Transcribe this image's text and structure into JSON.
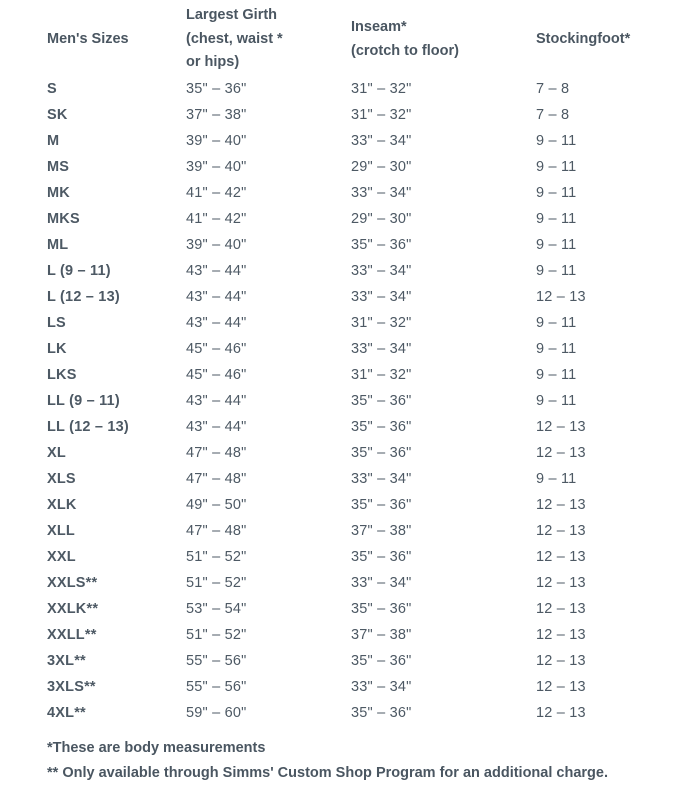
{
  "headers": {
    "size": "Men's Sizes",
    "girth": [
      "Largest Girth",
      "(chest, waist *",
      "or hips)"
    ],
    "inseam": [
      "Inseam*",
      "(crotch to floor)"
    ],
    "stockingfoot": "Stockingfoot*"
  },
  "rows": [
    [
      "S",
      "35\" – 36\"",
      "31\" – 32\"",
      "7 – 8"
    ],
    [
      "SK",
      "37\" – 38\"",
      "31\" – 32\"",
      "7 – 8"
    ],
    [
      "M",
      "39\" – 40\"",
      "33\" – 34\"",
      "9 – 11"
    ],
    [
      "MS",
      "39\" – 40\"",
      "29\" – 30\"",
      "9 – 11"
    ],
    [
      "MK",
      "41\" – 42\"",
      "33\" – 34\"",
      "9 – 11"
    ],
    [
      "MKS",
      "41\" – 42\"",
      "29\" – 30\"",
      "9 – 11"
    ],
    [
      "ML",
      "39\" – 40\"",
      "35\" – 36\"",
      "9 – 11"
    ],
    [
      "L (9 – 11)",
      "43\" – 44\"",
      "33\" – 34\"",
      "9 – 11"
    ],
    [
      "L (12 – 13)",
      "43\" – 44\"",
      "33\" – 34\"",
      "12 – 13"
    ],
    [
      "LS",
      "43\" – 44\"",
      "31\" – 32\"",
      "9 – 11"
    ],
    [
      "LK",
      "45\" – 46\"",
      "33\" – 34\"",
      "9 – 11"
    ],
    [
      "LKS",
      "45\" – 46\"",
      "31\" – 32\"",
      "9 – 11"
    ],
    [
      "LL (9 – 11)",
      "43\" – 44\"",
      "35\" – 36\"",
      "9 – 11"
    ],
    [
      "LL (12 – 13)",
      "43\" – 44\"",
      "35\" – 36\"",
      "12 – 13"
    ],
    [
      "XL",
      "47\" – 48\"",
      "35\" – 36\"",
      "12 – 13"
    ],
    [
      "XLS",
      "47\" – 48\"",
      "33\" – 34\"",
      "9 – 11"
    ],
    [
      "XLK",
      "49\" – 50\"",
      "35\" – 36\"",
      "12 – 13"
    ],
    [
      "XLL",
      "47\" – 48\"",
      "37\" – 38\"",
      "12 – 13"
    ],
    [
      "XXL",
      "51\" – 52\"",
      "35\" – 36\"",
      "12 – 13"
    ],
    [
      "XXLS**",
      "51\" – 52\"",
      "33\" – 34\"",
      "12 – 13"
    ],
    [
      "XXLK**",
      "53\" – 54\"",
      "35\" – 36\"",
      "12 – 13"
    ],
    [
      "XXLL**",
      "51\" – 52\"",
      "37\" – 38\"",
      "12 – 13"
    ],
    [
      "3XL**",
      "55\" – 56\"",
      "35\" – 36\"",
      "12 – 13"
    ],
    [
      "3XLS**",
      "55\" – 56\"",
      "33\" – 34\"",
      "12 – 13"
    ],
    [
      "4XL**",
      "59\" – 60\"",
      "35\" – 36\"",
      "12 – 13"
    ]
  ],
  "notes": [
    "*These are body measurements",
    "** Only available through Simms' Custom Shop Program for an additional charge."
  ]
}
